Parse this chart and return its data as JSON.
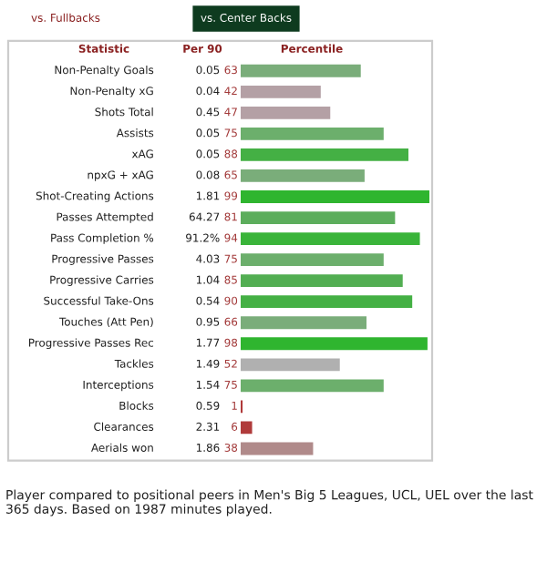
{
  "chart_data": {
    "type": "bar",
    "orientation": "horizontal",
    "data_labels": true,
    "categories": [
      "Non-Penalty Goals",
      "Non-Penalty xG",
      "Shots Total",
      "Assists",
      "xAG",
      "npxG + xAG",
      "Shot-Creating Actions",
      "Passes Attempted",
      "Pass Completion %",
      "Progressive Passes",
      "Progressive Carries",
      "Successful Take-Ons",
      "Touches (Att Pen)",
      "Progressive Passes Rec",
      "Tackles",
      "Interceptions",
      "Blocks",
      "Clearances",
      "Aerials won"
    ],
    "values": [
      63,
      42,
      47,
      75,
      88,
      65,
      99,
      81,
      94,
      75,
      85,
      90,
      66,
      98,
      52,
      75,
      1,
      6,
      38
    ],
    "colors": [
      "#7aad7a",
      "#b4a0a5",
      "#b4a0a5",
      "#6caf6c",
      "#44b044",
      "#7aad7a",
      "#2fb52f",
      "#5cad5c",
      "#3ab43a",
      "#6caf6c",
      "#52ae52",
      "#44b044",
      "#7aad7a",
      "#2fb52f",
      "#b0b0b0",
      "#6caf6c",
      "#b03a3a",
      "#b03a3a",
      "#b08a8a"
    ],
    "annotations": [
      "vs. Fullbacks",
      "vs. Center Backs",
      "Statistic",
      "Per 90",
      "Percentile",
      "0.05",
      "0.04",
      "0.45",
      "0.05",
      "0.05",
      "0.08",
      "1.81",
      "64.27",
      "91.2%",
      "4.03",
      "1.04",
      "0.54",
      "0.95",
      "1.77",
      "1.49",
      "1.54",
      "0.59",
      "2.31",
      "1.86",
      "Player compared to positional peers in Men's Big 5 Leagues, UCL, UEL over the last 365 days. Based on 1987 minutes played."
    ]
  }
}
